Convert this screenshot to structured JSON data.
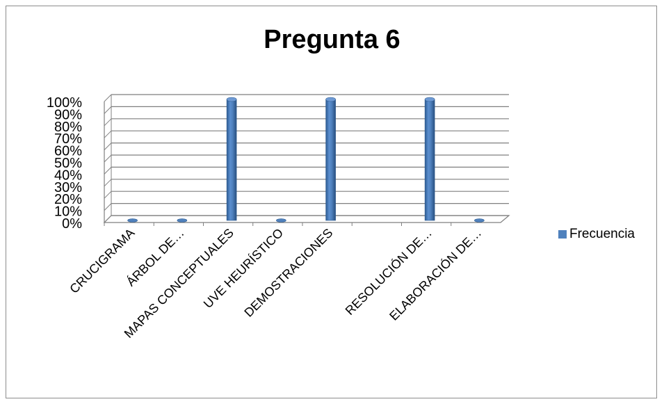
{
  "chart_data": {
    "type": "bar",
    "title": "Pregunta  6",
    "categories": [
      "CRUCIGRAMA",
      "ÁRBOL DE…",
      "MAPAS CONCEPTUALES",
      "UVE HEURÍSTICO",
      "DEMOSTRACIONES",
      "",
      "RESOLUCIÓN DE…",
      "ELABORACIÓN DE…"
    ],
    "series": [
      {
        "name": "Frecuencia",
        "values": [
          0,
          0,
          100,
          0,
          100,
          null,
          100,
          0
        ]
      }
    ],
    "y_ticks": [
      "0%",
      "10%",
      "20%",
      "30%",
      "40%",
      "50%",
      "60%",
      "70%",
      "80%",
      "90%",
      "100%"
    ],
    "ylim": [
      0,
      100
    ],
    "grid": true,
    "legend_position": "right",
    "bar_style": "3d-cylinder",
    "bar_color": "#4f81bd"
  }
}
